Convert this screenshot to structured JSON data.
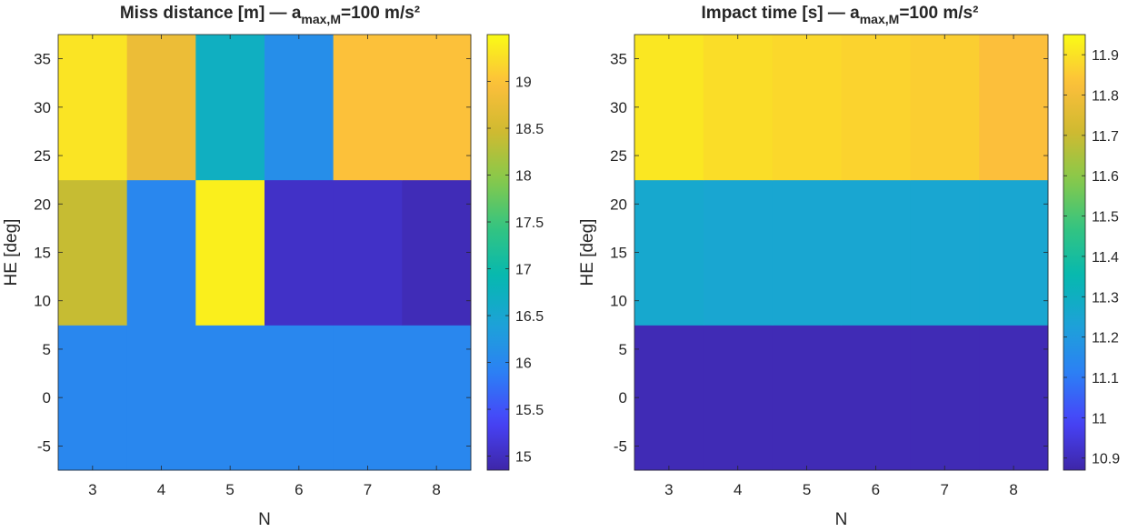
{
  "chart_data": [
    {
      "type": "heatmap",
      "title_parts": [
        "Miss distance [m] — a",
        "max,M",
        "=100 m/s²"
      ],
      "xlabel": "N",
      "ylabel": "HE [deg]",
      "x_categories": [
        "3",
        "4",
        "5",
        "6",
        "7",
        "8"
      ],
      "y_bands": [
        {
          "range": [
            -7.5,
            7.5
          ],
          "values": [
            16.0,
            16.0,
            16.0,
            16.0,
            16.0,
            16.0
          ]
        },
        {
          "range": [
            7.5,
            22.5
          ],
          "values": [
            18.4,
            16.0,
            19.4,
            15.05,
            15.05,
            14.95
          ]
        },
        {
          "range": [
            22.5,
            37.5
          ],
          "values": [
            19.3,
            18.8,
            16.7,
            16.1,
            19.0,
            19.0
          ]
        }
      ],
      "ylim": [
        -7.5,
        37.5
      ],
      "yticks": [
        -5,
        0,
        5,
        10,
        15,
        20,
        25,
        30,
        35
      ],
      "clim": [
        14.85,
        19.5
      ],
      "colorbar_ticks": [
        15,
        15.5,
        16,
        16.5,
        17,
        17.5,
        18,
        18.5,
        19
      ],
      "colormap": [
        "#3e26a8",
        "#4743f8",
        "#2c7ff5",
        "#1da2d8",
        "#06b8b0",
        "#33c481",
        "#86c94b",
        "#d0ba30",
        "#fcbf3b",
        "#f9fb15"
      ]
    },
    {
      "type": "heatmap",
      "title_parts": [
        "Impact time [s] — a",
        "max,M",
        "=100 m/s²"
      ],
      "xlabel": "N",
      "ylabel": "HE [deg]",
      "x_categories": [
        "3",
        "4",
        "5",
        "6",
        "7",
        "8"
      ],
      "y_bands": [
        {
          "range": [
            -7.5,
            7.5
          ],
          "values": [
            10.89,
            10.89,
            10.89,
            10.89,
            10.89,
            10.89
          ]
        },
        {
          "range": [
            7.5,
            22.5
          ],
          "values": [
            11.26,
            11.25,
            11.25,
            11.25,
            11.25,
            11.25
          ]
        },
        {
          "range": [
            22.5,
            37.5
          ],
          "values": [
            11.91,
            11.89,
            11.88,
            11.87,
            11.86,
            11.83
          ]
        }
      ],
      "ylim": [
        -7.5,
        37.5
      ],
      "yticks": [
        -5,
        0,
        5,
        10,
        15,
        20,
        25,
        30,
        35
      ],
      "clim": [
        10.87,
        11.95
      ],
      "colorbar_ticks": [
        10.9,
        11,
        11.1,
        11.2,
        11.3,
        11.4,
        11.5,
        11.6,
        11.7,
        11.8,
        11.9
      ],
      "colormap": [
        "#3e26a8",
        "#4743f8",
        "#2c7ff5",
        "#1da2d8",
        "#06b8b0",
        "#33c481",
        "#86c94b",
        "#d0ba30",
        "#fcbf3b",
        "#f9fb15"
      ]
    }
  ]
}
